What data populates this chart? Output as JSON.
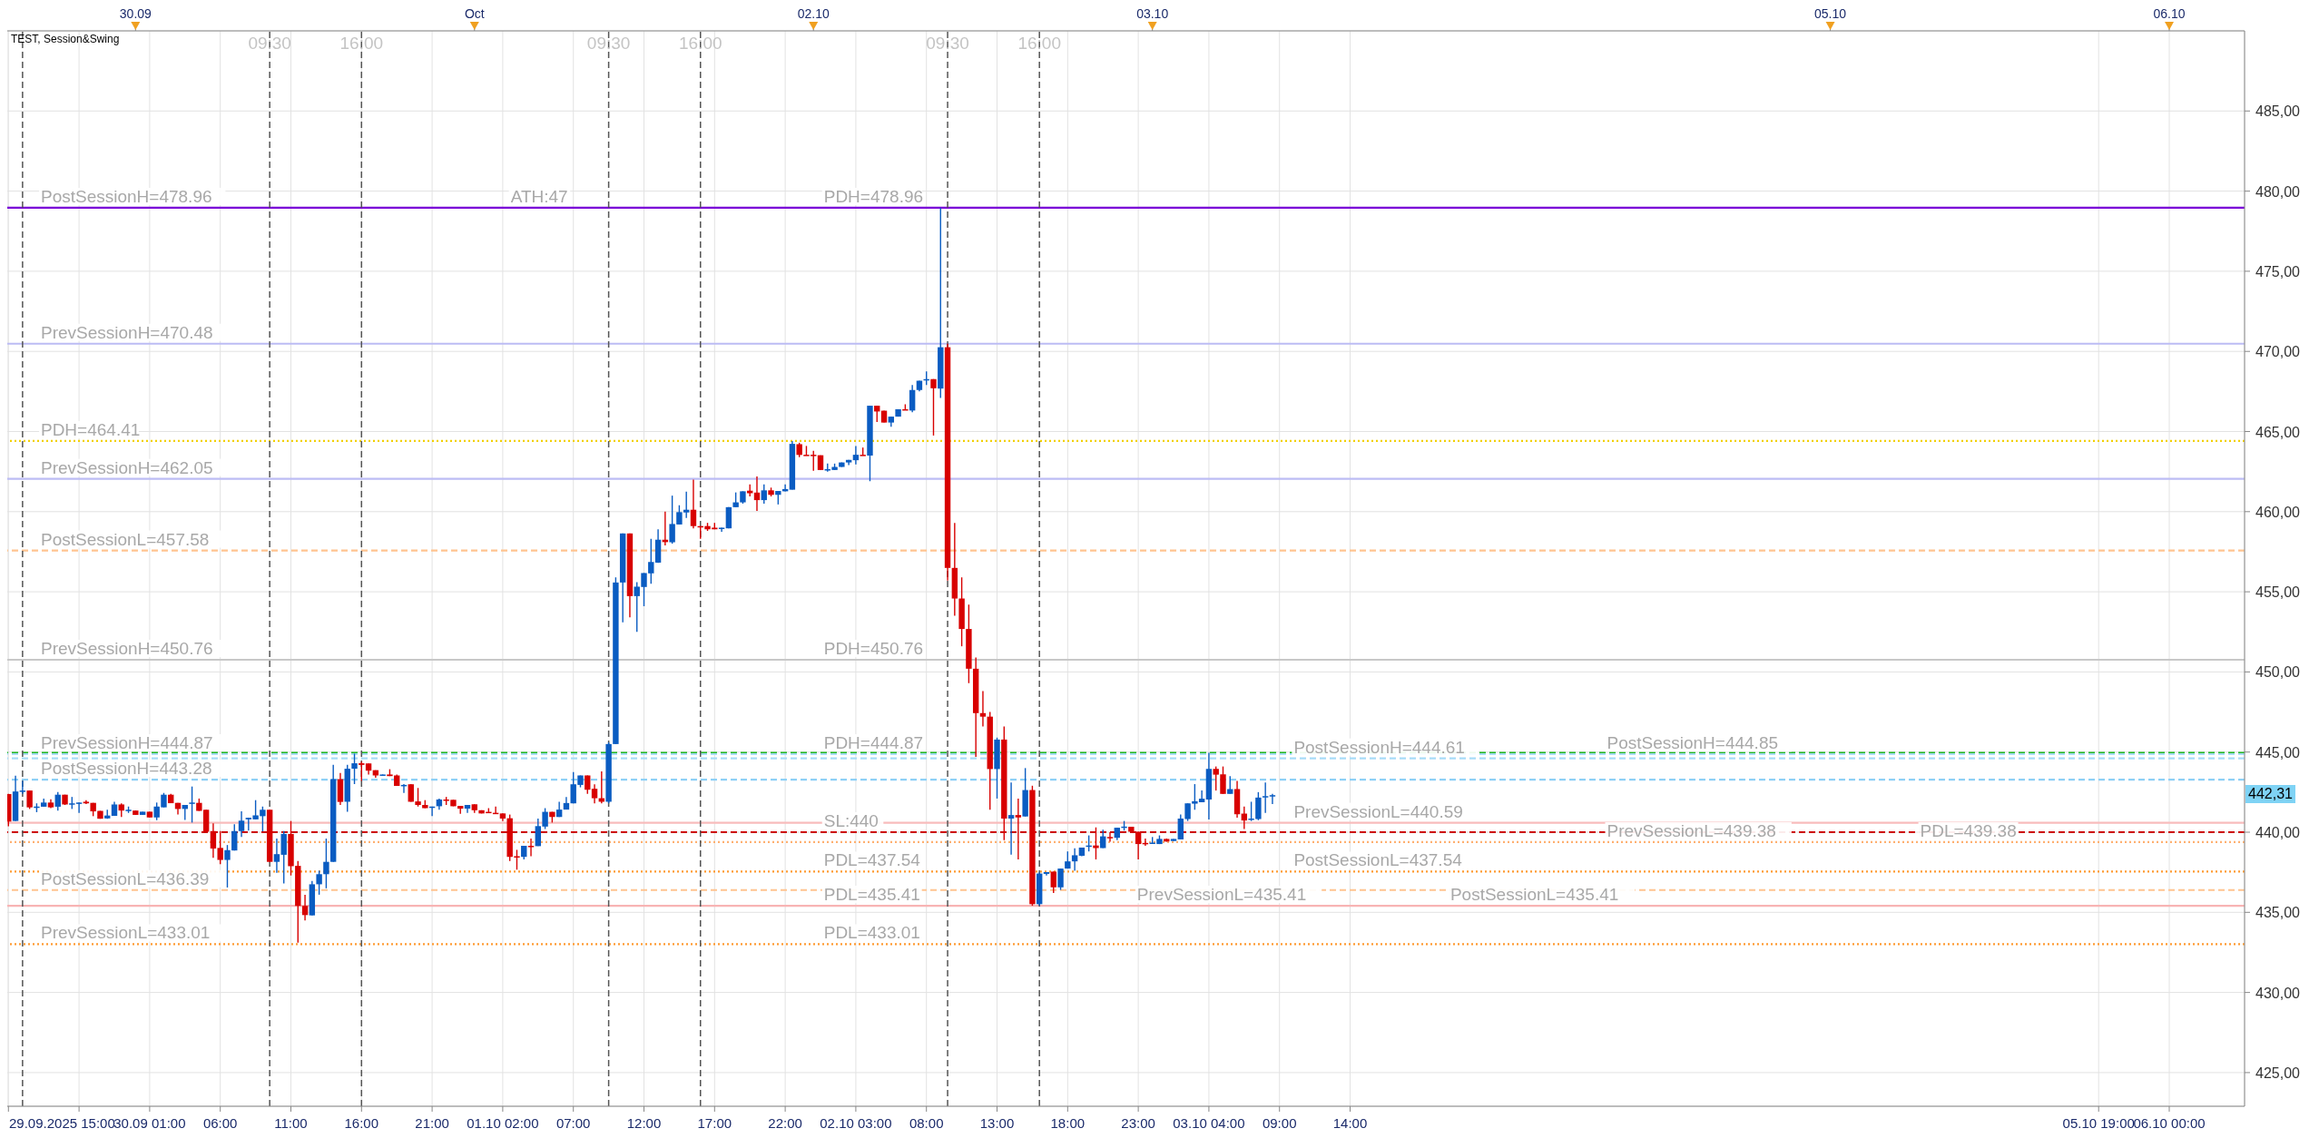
{
  "chart_data": {
    "type": "candlestick",
    "title": "TEST, Session&Swing",
    "colors": [
      "#d80000",
      "#0a5cc2",
      "#0a5cc2",
      "#d80000",
      "#0a5cc2",
      "#0a5cc2",
      "#d80000",
      "#0a5cc2",
      "#d80000",
      "#0a5cc2",
      "#0a5cc2",
      "#d80000",
      "#d80000",
      "#d80000",
      "#0a5cc2",
      "#0a5cc2",
      "#d80000",
      "#0a5cc2",
      "#d80000",
      "#0a5cc2",
      "#d80000",
      "#0a5cc2",
      "#0a5cc2",
      "#d80000",
      "#d80000",
      "#0a5cc2",
      "#0a5cc2",
      "#d80000",
      "#d80000",
      "#d80000",
      "#d80000",
      "#0a5cc2",
      "#0a5cc2",
      "#0a5cc2",
      "#0a5cc2",
      "#0a5cc2",
      "#0a5cc2",
      "#d80000",
      "#0a5cc2",
      "#0a5cc2",
      "#d80000",
      "#d80000",
      "#d80000",
      "#0a5cc2",
      "#0a5cc2",
      "#0a5cc2",
      "#0a5cc2",
      "#d80000",
      "#0a5cc2",
      "#0a5cc2",
      "#d80000",
      "#d80000",
      "#d80000",
      "#0a5cc2",
      "#d80000",
      "#d80000",
      "#0a5cc2",
      "#d80000",
      "#d80000",
      "#d80000",
      "#0a5cc2",
      "#0a5cc2",
      "#d80000",
      "#d80000",
      "#d80000",
      "#0a5cc2",
      "#d80000",
      "#d80000",
      "#d80000",
      "#d80000",
      "#d80000",
      "#d80000",
      "#d80000",
      "#0a5cc2",
      "#d80000",
      "#0a5cc2",
      "#0a5cc2",
      "#d80000",
      "#0a5cc2",
      "#0a5cc2",
      "#0a5cc2",
      "#0a5cc2",
      "#d80000",
      "#d80000",
      "#d80000",
      "#0a5cc2",
      "#0a5cc2",
      "#0a5cc2",
      "#d80000",
      "#0a5cc2",
      "#0a5cc2",
      "#0a5cc2",
      "#0a5cc2",
      "#d80000",
      "#0a5cc2",
      "#0a5cc2",
      "#0a5cc2",
      "#d80000",
      "#d80000",
      "#d80000",
      "#d80000",
      "#0a5cc2",
      "#0a5cc2",
      "#0a5cc2",
      "#0a5cc2",
      "#d80000",
      "#d80000",
      "#0a5cc2",
      "#d80000",
      "#0a5cc2",
      "#0a5cc2",
      "#0a5cc2",
      "#d80000",
      "#d80000",
      "#d80000",
      "#d80000",
      "#0a5cc2",
      "#0a5cc2",
      "#0a5cc2",
      "#0a5cc2",
      "#0a5cc2",
      "#d80000",
      "#0a5cc2",
      "#d80000",
      "#d80000",
      "#0a5cc2",
      "#0a5cc2",
      "#d80000",
      "#0a5cc2",
      "#0a5cc2",
      "#0a5cc2",
      "#d80000",
      "#0a5cc2",
      "#d80000",
      "#d80000",
      "#d80000",
      "#d80000",
      "#d80000",
      "#d80000",
      "#d80000",
      "#0a5cc2",
      "#d80000",
      "#0a5cc2",
      "#d80000",
      "#0a5cc2",
      "#d80000",
      "#0a5cc2",
      "#0a5cc2",
      "#d80000",
      "#0a5cc2",
      "#0a5cc2",
      "#0a5cc2",
      "#0a5cc2",
      "#0a5cc2",
      "#d80000",
      "#0a5cc2",
      "#d80000",
      "#0a5cc2",
      "#0a5cc2",
      "#d80000",
      "#d80000",
      "#d80000",
      "#0a5cc2",
      "#0a5cc2",
      "#d80000",
      "#0a5cc2",
      "#0a5cc2",
      "#0a5cc2",
      "#0a5cc2",
      "#0a5cc2",
      "#0a5cc2",
      "#d80000",
      "#d80000",
      "#0a5cc2",
      "#d80000",
      "#d80000",
      "#0a5cc2",
      "#0a5cc2",
      "#0a5cc2",
      "#0a5cc2"
    ],
    "x": [
      "2025-09-29T15:00",
      "2025-09-29T15:30",
      "2025-09-29T16:00",
      "2025-09-29T16:30",
      "2025-09-29T17:00",
      "2025-09-29T17:30",
      "2025-09-29T18:00",
      "2025-09-29T18:30",
      "2025-09-29T19:00",
      "2025-09-29T19:30",
      "2025-09-29T20:00",
      "2025-09-29T20:30",
      "2025-09-29T21:00",
      "2025-09-29T21:30",
      "2025-09-29T22:00",
      "2025-09-29T22:30",
      "2025-09-29T23:00",
      "2025-09-29T23:30",
      "2025-09-30T00:00",
      "2025-09-30T00:30",
      "2025-09-30T01:00",
      "2025-09-30T01:30",
      "2025-09-30T02:00",
      "2025-09-30T02:30",
      "2025-09-30T03:00",
      "2025-09-30T03:30",
      "2025-09-30T04:00",
      "2025-09-30T04:30",
      "2025-09-30T05:00",
      "2025-09-30T05:30",
      "2025-09-30T06:00",
      "2025-09-30T06:30",
      "2025-09-30T07:00",
      "2025-09-30T07:30",
      "2025-09-30T08:00",
      "2025-09-30T08:30",
      "2025-09-30T09:00",
      "2025-09-30T09:30",
      "2025-09-30T10:00",
      "2025-09-30T10:30",
      "2025-09-30T11:00",
      "2025-09-30T11:30",
      "2025-09-30T12:00",
      "2025-09-30T12:30",
      "2025-09-30T13:00",
      "2025-09-30T13:30",
      "2025-09-30T14:00",
      "2025-09-30T14:30",
      "2025-09-30T15:00",
      "2025-09-30T15:30",
      "2025-09-30T16:00",
      "2025-09-30T16:30",
      "2025-09-30T17:00",
      "2025-09-30T17:30",
      "2025-09-30T18:00",
      "2025-09-30T18:30",
      "2025-09-30T19:00",
      "2025-09-30T19:30",
      "2025-09-30T20:00",
      "2025-09-30T20:30",
      "2025-09-30T21:00",
      "2025-09-30T21:30",
      "2025-09-30T22:00",
      "2025-09-30T22:30",
      "2025-09-30T23:00",
      "2025-09-30T23:30",
      "2025-10-01T00:00",
      "2025-10-01T00:30",
      "2025-10-01T01:00",
      "2025-10-01T01:30",
      "2025-10-01T02:00",
      "2025-10-01T02:30",
      "2025-10-01T03:00",
      "2025-10-01T03:30",
      "2025-10-01T04:00",
      "2025-10-01T04:30",
      "2025-10-01T05:00",
      "2025-10-01T05:30",
      "2025-10-01T06:00",
      "2025-10-01T06:30",
      "2025-10-01T07:00",
      "2025-10-01T07:30",
      "2025-10-01T08:00",
      "2025-10-01T08:30",
      "2025-10-01T09:00",
      "2025-10-01T09:30",
      "2025-10-01T10:00",
      "2025-10-01T10:30",
      "2025-10-01T11:00",
      "2025-10-01T11:30",
      "2025-10-01T12:00",
      "2025-10-01T12:30",
      "2025-10-01T13:00",
      "2025-10-01T13:30",
      "2025-10-01T14:00",
      "2025-10-01T14:30",
      "2025-10-01T15:00",
      "2025-10-01T15:30",
      "2025-10-01T16:00",
      "2025-10-01T16:30",
      "2025-10-01T17:00",
      "2025-10-01T17:30",
      "2025-10-01T18:00",
      "2025-10-01T18:30",
      "2025-10-01T19:00",
      "2025-10-01T19:30",
      "2025-10-01T20:00",
      "2025-10-01T20:30",
      "2025-10-01T21:00",
      "2025-10-01T21:30",
      "2025-10-01T22:00",
      "2025-10-01T22:30",
      "2025-10-01T23:00",
      "2025-10-01T23:30",
      "2025-10-02T00:00",
      "2025-10-02T00:30",
      "2025-10-02T01:00",
      "2025-10-02T01:30",
      "2025-10-02T02:00",
      "2025-10-02T02:30",
      "2025-10-02T03:00",
      "2025-10-02T03:30",
      "2025-10-02T04:00",
      "2025-10-02T04:30",
      "2025-10-02T05:00",
      "2025-10-02T05:30",
      "2025-10-02T06:00",
      "2025-10-02T06:30",
      "2025-10-02T07:00",
      "2025-10-02T07:30",
      "2025-10-02T08:00",
      "2025-10-02T08:30",
      "2025-10-02T09:00",
      "2025-10-02T09:30",
      "2025-10-02T10:00",
      "2025-10-02T10:30",
      "2025-10-02T11:00",
      "2025-10-02T11:30",
      "2025-10-02T12:00",
      "2025-10-02T12:30",
      "2025-10-02T13:00",
      "2025-10-02T13:30",
      "2025-10-02T14:00",
      "2025-10-02T14:30",
      "2025-10-02T15:00",
      "2025-10-02T15:30",
      "2025-10-02T16:00",
      "2025-10-02T16:30",
      "2025-10-02T17:00",
      "2025-10-02T17:30",
      "2025-10-02T18:00",
      "2025-10-02T18:30",
      "2025-10-02T19:00",
      "2025-10-02T19:30",
      "2025-10-02T20:00",
      "2025-10-02T20:30",
      "2025-10-02T21:00",
      "2025-10-02T21:30",
      "2025-10-02T22:00",
      "2025-10-02T22:30",
      "2025-10-02T23:00",
      "2025-10-02T23:30",
      "2025-10-03T00:00",
      "2025-10-03T00:30",
      "2025-10-03T01:00",
      "2025-10-03T01:30",
      "2025-10-03T02:00",
      "2025-10-03T02:30",
      "2025-10-03T03:00",
      "2025-10-03T03:30",
      "2025-10-03T04:00",
      "2025-10-03T04:30",
      "2025-10-03T05:00",
      "2025-10-03T05:30",
      "2025-10-03T06:00",
      "2025-10-03T06:30",
      "2025-10-03T07:00",
      "2025-10-03T07:30",
      "2025-10-03T08:00",
      "2025-10-03T08:30"
    ],
    "ohlc": [
      [
        442.38,
        442.4,
        440.37,
        440.66
      ],
      [
        440.7,
        443.53,
        440.7,
        442.54
      ],
      [
        442.55,
        443.2,
        442.4,
        442.6
      ],
      [
        442.6,
        442.6,
        441.45,
        441.55
      ],
      [
        441.6,
        441.8,
        441.25,
        441.6
      ],
      [
        441.59,
        442.1,
        441.59,
        441.85
      ],
      [
        441.85,
        442.05,
        441.5,
        441.55
      ],
      [
        441.59,
        442.5,
        441.35,
        442.34
      ],
      [
        442.34,
        442.34,
        441.7,
        441.73
      ],
      [
        441.75,
        442.2,
        441.45,
        441.8
      ],
      [
        441.8,
        441.85,
        441.2,
        441.85
      ],
      [
        441.9,
        442.0,
        441.75,
        441.8
      ],
      [
        441.83,
        441.83,
        441.0,
        441.3
      ],
      [
        441.33,
        441.33,
        440.84,
        440.84
      ],
      [
        440.86,
        441.4,
        440.84,
        441.04
      ],
      [
        441.02,
        441.9,
        441.02,
        441.73
      ],
      [
        441.73,
        441.8,
        440.95,
        441.35
      ],
      [
        441.35,
        441.6,
        441.2,
        441.4
      ],
      [
        441.35,
        441.35,
        441.08,
        441.08
      ],
      [
        441.08,
        441.28,
        441.08,
        441.28
      ],
      [
        441.28,
        441.28,
        440.92,
        440.92
      ],
      [
        440.92,
        441.85,
        440.75,
        441.6
      ],
      [
        441.55,
        442.45,
        441.55,
        442.34
      ],
      [
        442.34,
        442.4,
        441.81,
        441.81
      ],
      [
        441.83,
        441.83,
        441.1,
        441.45
      ],
      [
        441.45,
        441.7,
        440.77,
        441.7
      ],
      [
        441.8,
        442.85,
        440.6,
        441.85
      ],
      [
        441.83,
        442.1,
        441.33,
        441.33
      ],
      [
        441.4,
        441.4,
        440.03,
        440.03
      ],
      [
        440.07,
        440.55,
        438.4,
        438.98
      ],
      [
        439.02,
        440.07,
        438.0,
        438.27
      ],
      [
        438.27,
        439.2,
        436.55,
        438.88
      ],
      [
        438.86,
        440.5,
        438.86,
        440.07
      ],
      [
        440.07,
        441.3,
        439.7,
        440.72
      ],
      [
        440.8,
        440.9,
        440.1,
        440.9
      ],
      [
        440.8,
        442.0,
        440.8,
        441.05
      ],
      [
        441.0,
        441.6,
        440.05,
        441.4
      ],
      [
        441.4,
        441.4,
        438.15,
        438.15
      ],
      [
        438.15,
        439.6,
        437.47,
        438.63
      ],
      [
        438.59,
        440.07,
        436.8,
        439.89
      ],
      [
        439.89,
        440.7,
        437.3,
        437.88
      ],
      [
        437.9,
        438.2,
        433.1,
        435.4
      ],
      [
        435.4,
        436.1,
        434.5,
        434.83
      ],
      [
        434.81,
        436.95,
        434.81,
        436.75
      ],
      [
        436.75,
        437.6,
        436.1,
        437.38
      ],
      [
        437.38,
        439.6,
        436.5,
        438.15
      ],
      [
        438.15,
        444.2,
        438.15,
        443.31
      ],
      [
        443.31,
        443.7,
        441.7,
        441.89
      ],
      [
        441.9,
        444.2,
        441.27,
        443.96
      ],
      [
        443.96,
        444.9,
        443.0,
        444.3
      ],
      [
        444.3,
        444.4,
        443.2,
        444.2
      ],
      [
        444.29,
        444.29,
        443.6,
        443.84
      ],
      [
        443.87,
        443.87,
        443.4,
        443.54
      ],
      [
        443.55,
        443.6,
        443.55,
        443.6
      ],
      [
        443.6,
        443.93,
        443.5,
        443.5
      ],
      [
        443.54,
        443.6,
        442.89,
        442.89
      ],
      [
        442.9,
        443.0,
        442.45,
        442.95
      ],
      [
        442.99,
        443.0,
        441.9,
        441.9
      ],
      [
        441.92,
        442.76,
        441.6,
        441.7
      ],
      [
        441.7,
        442.0,
        441.5,
        441.5
      ],
      [
        441.55,
        441.6,
        441.0,
        441.6
      ],
      [
        441.62,
        442.1,
        441.4,
        442.04
      ],
      [
        442.04,
        442.2,
        441.7,
        442.0
      ],
      [
        442.02,
        442.02,
        441.62,
        441.62
      ],
      [
        441.64,
        441.64,
        441.15,
        441.47
      ],
      [
        441.47,
        441.7,
        441.2,
        441.7
      ],
      [
        441.74,
        441.74,
        441.2,
        441.37
      ],
      [
        441.37,
        441.37,
        441.17,
        441.17
      ],
      [
        441.27,
        441.5,
        441.25,
        441.25
      ],
      [
        441.21,
        441.6,
        441.15,
        441.15
      ],
      [
        441.17,
        441.17,
        440.7,
        440.85
      ],
      [
        440.87,
        441.1,
        438.2,
        438.46
      ],
      [
        438.5,
        438.9,
        437.66,
        438.47
      ],
      [
        438.46,
        439.15,
        438.3,
        439.15
      ],
      [
        439.15,
        439.6,
        438.5,
        439.1
      ],
      [
        439.13,
        440.85,
        439.13,
        440.38
      ],
      [
        440.35,
        441.5,
        440.2,
        441.27
      ],
      [
        441.27,
        441.27,
        440.6,
        440.95
      ],
      [
        440.95,
        441.9,
        440.95,
        441.41
      ],
      [
        441.41,
        442.2,
        441.41,
        441.82
      ],
      [
        441.8,
        443.75,
        441.8,
        442.99
      ],
      [
        442.95,
        443.54,
        442.8,
        443.54
      ],
      [
        443.54,
        443.54,
        442.4,
        442.65
      ],
      [
        442.71,
        442.99,
        441.8,
        442.12
      ],
      [
        442.12,
        443.8,
        441.8,
        441.9
      ],
      [
        441.9,
        445.6,
        441.8,
        445.5
      ],
      [
        445.5,
        455.9,
        445.5,
        455.58
      ],
      [
        455.58,
        458.64,
        453.1,
        458.64
      ],
      [
        458.64,
        458.64,
        453.4,
        454.73
      ],
      [
        454.73,
        455.6,
        452.5,
        455.32
      ],
      [
        455.3,
        456.17,
        454.1,
        456.17
      ],
      [
        456.15,
        458.3,
        455.5,
        456.86
      ],
      [
        456.82,
        458.9,
        456.8,
        458.25
      ],
      [
        458.25,
        460.0,
        457.9,
        458.1
      ],
      [
        458.09,
        461.0,
        458.0,
        459.23
      ],
      [
        459.2,
        460.4,
        459.2,
        459.97
      ],
      [
        459.95,
        461.25,
        459.6,
        460.12
      ],
      [
        460.12,
        462.0,
        458.95,
        459.1
      ],
      [
        459.1,
        459.1,
        458.3,
        459.05
      ],
      [
        459.1,
        459.3,
        458.8,
        458.9
      ],
      [
        459.0,
        459.3,
        458.9,
        458.9
      ],
      [
        458.94,
        459.0,
        458.75,
        459.0
      ],
      [
        458.96,
        460.28,
        458.96,
        460.28
      ],
      [
        460.28,
        461.2,
        460.28,
        460.58
      ],
      [
        460.58,
        461.27,
        460.5,
        461.27
      ],
      [
        461.31,
        461.7,
        460.95,
        461.15
      ],
      [
        461.19,
        462.2,
        460.05,
        460.72
      ],
      [
        460.72,
        461.7,
        460.5,
        461.33
      ],
      [
        461.33,
        461.5,
        460.95,
        461.05
      ],
      [
        461.05,
        461.29,
        460.45,
        461.29
      ],
      [
        461.27,
        461.7,
        461.27,
        461.41
      ],
      [
        461.37,
        464.4,
        461.37,
        464.23
      ],
      [
        464.21,
        464.3,
        463.4,
        463.54
      ],
      [
        463.55,
        464.1,
        463.5,
        463.5
      ],
      [
        463.55,
        463.8,
        462.55,
        463.5
      ],
      [
        463.52,
        463.52,
        462.6,
        462.6
      ],
      [
        462.6,
        463.0,
        462.5,
        462.65
      ],
      [
        462.6,
        463.0,
        462.6,
        462.79
      ],
      [
        462.79,
        463.07,
        462.79,
        463.07
      ],
      [
        463.07,
        463.23,
        462.9,
        463.23
      ],
      [
        463.21,
        464.1,
        462.95,
        463.55
      ],
      [
        463.55,
        464.0,
        463.5,
        463.5
      ],
      [
        463.5,
        466.61,
        461.9,
        466.61
      ],
      [
        466.61,
        466.61,
        465.6,
        466.25
      ],
      [
        466.3,
        466.3,
        465.56,
        465.56
      ],
      [
        465.56,
        465.93,
        465.3,
        465.93
      ],
      [
        465.93,
        466.39,
        465.93,
        466.39
      ],
      [
        466.39,
        466.7,
        466.35,
        466.35
      ],
      [
        466.31,
        467.9,
        466.2,
        467.59
      ],
      [
        467.59,
        468.17,
        467.5,
        468.17
      ],
      [
        468.2,
        468.75,
        467.9,
        468.27
      ],
      [
        468.27,
        468.27,
        464.75,
        467.7
      ],
      [
        467.68,
        478.96,
        467.1,
        470.26
      ],
      [
        470.26,
        470.48,
        455.7,
        456.49
      ],
      [
        456.49,
        459.3,
        453.5,
        454.58
      ],
      [
        454.58,
        455.9,
        451.6,
        452.68
      ],
      [
        452.68,
        454.2,
        449.3,
        450.2
      ],
      [
        450.2,
        450.9,
        444.7,
        447.43
      ],
      [
        447.43,
        448.8,
        446.6,
        447.21
      ],
      [
        447.21,
        447.5,
        441.4,
        443.94
      ],
      [
        443.94,
        445.9,
        442.1,
        445.78
      ],
      [
        445.78,
        446.6,
        439.5,
        440.85
      ],
      [
        440.85,
        443.1,
        438.6,
        441.07
      ],
      [
        441.07,
        442.1,
        438.3,
        440.92
      ],
      [
        440.98,
        444.0,
        440.98,
        442.63
      ],
      [
        442.63,
        442.9,
        435.41,
        435.51
      ],
      [
        435.51,
        437.5,
        435.41,
        437.42
      ],
      [
        437.4,
        437.51,
        437.3,
        437.51
      ],
      [
        437.54,
        437.54,
        436.2,
        436.56
      ],
      [
        436.56,
        437.73,
        436.4,
        437.73
      ],
      [
        437.73,
        438.8,
        437.73,
        438.18
      ],
      [
        438.18,
        439.0,
        437.6,
        438.56
      ],
      [
        438.53,
        439.04,
        438.5,
        439.04
      ],
      [
        439.1,
        439.8,
        438.8,
        439.17
      ],
      [
        439.17,
        440.3,
        438.3,
        439.01
      ],
      [
        439.01,
        440.15,
        439.01,
        439.74
      ],
      [
        439.7,
        440.0,
        439.4,
        439.68
      ],
      [
        439.65,
        440.28,
        439.5,
        440.28
      ],
      [
        440.3,
        440.7,
        440.1,
        440.35
      ],
      [
        440.34,
        440.34,
        440.03,
        440.03
      ],
      [
        440.03,
        440.03,
        438.3,
        439.26
      ],
      [
        439.33,
        439.6,
        439.15,
        439.3
      ],
      [
        439.3,
        439.7,
        439.3,
        439.35
      ],
      [
        439.26,
        439.8,
        439.26,
        439.58
      ],
      [
        439.58,
        439.6,
        439.4,
        439.42
      ],
      [
        439.45,
        439.58,
        439.45,
        439.58
      ],
      [
        439.55,
        441.1,
        439.55,
        440.85
      ],
      [
        440.82,
        441.8,
        440.7,
        441.8
      ],
      [
        441.78,
        443.0,
        441.4,
        441.93
      ],
      [
        441.87,
        442.6,
        441.87,
        442.09
      ],
      [
        442.04,
        444.95,
        440.8,
        443.95
      ],
      [
        443.95,
        444.1,
        442.6,
        443.59
      ],
      [
        443.61,
        444.1,
        442.39,
        442.39
      ],
      [
        442.39,
        443.5,
        442.39,
        442.69
      ],
      [
        442.69,
        443.2,
        440.9,
        441.12
      ],
      [
        441.16,
        441.6,
        440.2,
        440.73
      ],
      [
        440.8,
        441.9,
        440.7,
        440.85
      ],
      [
        440.82,
        442.5,
        440.75,
        442.16
      ],
      [
        442.2,
        443.1,
        441.2,
        442.25
      ],
      [
        442.25,
        442.4,
        441.75,
        442.31
      ]
    ],
    "xlim": [
      "2025-09-29T14:55",
      "2025-10-06T05:20"
    ],
    "xticks": [
      {
        "value": "2025-09-29T15:00",
        "label": "29.09.2025 15:00"
      },
      {
        "value": "2025-09-29T20:00",
        "label": null
      },
      {
        "value": "2025-09-30T01:00",
        "label": "30.09 01:00"
      },
      {
        "value": "2025-09-30T06:00",
        "label": "06:00"
      },
      {
        "value": "2025-09-30T11:00",
        "label": "11:00"
      },
      {
        "value": "2025-09-30T16:00",
        "label": "16:00"
      },
      {
        "value": "2025-09-30T21:00",
        "label": "21:00"
      },
      {
        "value": "2025-10-01T02:00",
        "label": "01.10 02:00"
      },
      {
        "value": "2025-10-01T07:00",
        "label": "07:00"
      },
      {
        "value": "2025-10-01T12:00",
        "label": "12:00"
      },
      {
        "value": "2025-10-01T17:00",
        "label": "17:00"
      },
      {
        "value": "2025-10-01T22:00",
        "label": "22:00"
      },
      {
        "value": "2025-10-02T03:00",
        "label": "02.10 03:00"
      },
      {
        "value": "2025-10-02T08:00",
        "label": "08:00"
      },
      {
        "value": "2025-10-02T13:00",
        "label": "13:00"
      },
      {
        "value": "2025-10-02T18:00",
        "label": "18:00"
      },
      {
        "value": "2025-10-02T23:00",
        "label": "23:00"
      },
      {
        "value": "2025-10-03T04:00",
        "label": "03.10 04:00"
      },
      {
        "value": "2025-10-03T09:00",
        "label": "09:00"
      },
      {
        "value": "2025-10-03T14:00",
        "label": "14:00"
      },
      {
        "value": "2025-10-05T19:00",
        "label": "05.10 19:00"
      },
      {
        "value": "2025-10-06T00:00",
        "label": "06.10 00:00"
      }
    ],
    "x2lim": [
      "2025-09-29T14:55",
      "2025-10-06T05:20"
    ],
    "x2ticks": [
      {
        "value": "2025-09-30",
        "label": "30.09"
      },
      {
        "value": "2025-10-01",
        "label": "Oct"
      },
      {
        "value": "2025-10-02",
        "label": "02.10"
      },
      {
        "value": "2025-10-03",
        "label": "03.10"
      },
      {
        "value": "2025-10-05",
        "label": "05.10"
      },
      {
        "value": "2025-10-06",
        "label": "06.10"
      }
    ],
    "ylim": [
      422.9,
      490.0
    ],
    "yticks": [
      {
        "value": 425,
        "label": "425,00"
      },
      {
        "value": 430,
        "label": "430,00"
      },
      {
        "value": 435,
        "label": "435,00"
      },
      {
        "value": 440,
        "label": "440,00"
      },
      {
        "value": 445,
        "label": "445,00"
      },
      {
        "value": 450,
        "label": "450,00"
      },
      {
        "value": 455,
        "label": "455,00"
      },
      {
        "value": 460,
        "label": "460,00"
      },
      {
        "value": 465,
        "label": "465,00"
      },
      {
        "value": 470,
        "label": "470,00"
      },
      {
        "value": 475,
        "label": "475,00"
      },
      {
        "value": 480,
        "label": "480,00"
      },
      {
        "value": 485,
        "label": "485,00"
      }
    ],
    "grid": true,
    "ref_lines": [
      {
        "axis": "y",
        "value": 478.96,
        "label": "PostSessionH=478.96",
        "color": "#7a00d8",
        "line_style": "solid"
      },
      {
        "axis": "y",
        "value": 470.48,
        "label": "PrevSessionH=470.48",
        "color": "#bcbcf4",
        "line_style": "solid"
      },
      {
        "axis": "y",
        "value": 464.41,
        "label": "PDH=464.41",
        "color": "#f2d000",
        "line_style": "dotted"
      },
      {
        "axis": "y",
        "value": 462.05,
        "label": "PrevSessionH=462.05",
        "color": "#bcbcf4",
        "line_style": "solid"
      },
      {
        "axis": "y",
        "value": 457.58,
        "label": "PostSessionL=457.58",
        "color": "#ffc490",
        "line_style": "dashed"
      },
      {
        "axis": "y",
        "value": 450.76,
        "label": "PrevSessionH=450.76",
        "color": "#c8c8c8",
        "line_style": "solid"
      },
      {
        "axis": "y",
        "value": 444.95,
        "label": null,
        "color": "#22b822",
        "line_style": "dashed"
      },
      {
        "axis": "y",
        "value": 444.87,
        "label": "PrevSessionH=444.87",
        "color": "#a8dcf8",
        "line_style": "dashed"
      },
      {
        "axis": "y",
        "value": 444.61,
        "label": "PostSessionH=444.61",
        "color": "#a8dcf8",
        "line_style": "dashed"
      },
      {
        "axis": "y",
        "value": 443.28,
        "label": "PostSessionH=443.28",
        "color": "#8ed0f6",
        "line_style": "dashed"
      },
      {
        "axis": "y",
        "value": 440.59,
        "label": "PrevSessionL=440.59",
        "color": "#f8bcbc",
        "line_style": "solid"
      },
      {
        "axis": "y",
        "value": 440,
        "label": "SL:440",
        "color": "#cc0000",
        "line_style": "dashed"
      },
      {
        "axis": "y",
        "value": 439.38,
        "label": "PrevSessionL=439.38",
        "color": "#ffb070",
        "line_style": "dotted"
      },
      {
        "axis": "y",
        "value": 437.54,
        "label": "PostSessionL=437.54",
        "color": "#ff9a30",
        "line_style": "dotted"
      },
      {
        "axis": "y",
        "value": 436.39,
        "label": "PostSessionL=436.39",
        "color": "#ffc490",
        "line_style": "dashed"
      },
      {
        "axis": "y",
        "value": 435.41,
        "label": "PrevSessionL=435.41",
        "color": "#f8b4b4",
        "line_style": "solid"
      },
      {
        "axis": "y",
        "value": 433.01,
        "label": "PrevSessionL=433.01",
        "color": "#ff9a30",
        "line_style": "dotted"
      },
      {
        "axis": "x",
        "value": "2025-09-29T16:00",
        "label": null,
        "color": "#555555",
        "line_style": "dashed"
      },
      {
        "axis": "x",
        "value": "2025-09-30T09:30",
        "label": "09:30",
        "color": "#555555",
        "line_style": "dashed"
      },
      {
        "axis": "x",
        "value": "2025-09-30T16:00",
        "label": "16:00",
        "color": "#555555",
        "line_style": "dashed"
      },
      {
        "axis": "x",
        "value": "2025-10-01T09:30",
        "label": "09:30",
        "color": "#555555",
        "line_style": "dashed"
      },
      {
        "axis": "x",
        "value": "2025-10-01T16:00",
        "label": "16:00",
        "color": "#555555",
        "line_style": "dashed"
      },
      {
        "axis": "x",
        "value": "2025-10-02T09:30",
        "label": "09:30",
        "color": "#555555",
        "line_style": "dashed"
      },
      {
        "axis": "x",
        "value": "2025-10-02T16:00",
        "label": "16:00",
        "color": "#555555",
        "line_style": "dashed"
      }
    ],
    "annotations": [
      {
        "text": "PDH=478.96",
        "y": 478.96
      },
      {
        "text": "ATH:47",
        "y": 478.96
      },
      {
        "text": "PDH=450.76",
        "y": 450.76
      },
      {
        "text": "PDH=444.87",
        "y": 444.87
      },
      {
        "text": "PostSessionH=444.85",
        "y": 444.85
      },
      {
        "text": "PDL=439.38",
        "y": 439.38
      },
      {
        "text": "PDL=437.54",
        "y": 437.54
      },
      {
        "text": "PDL=435.41",
        "y": 435.41
      },
      {
        "text": "PostSessionL=435.41",
        "y": 435.41
      },
      {
        "text": "PDL=433.01",
        "y": 433.01
      },
      "442,31"
    ]
  }
}
